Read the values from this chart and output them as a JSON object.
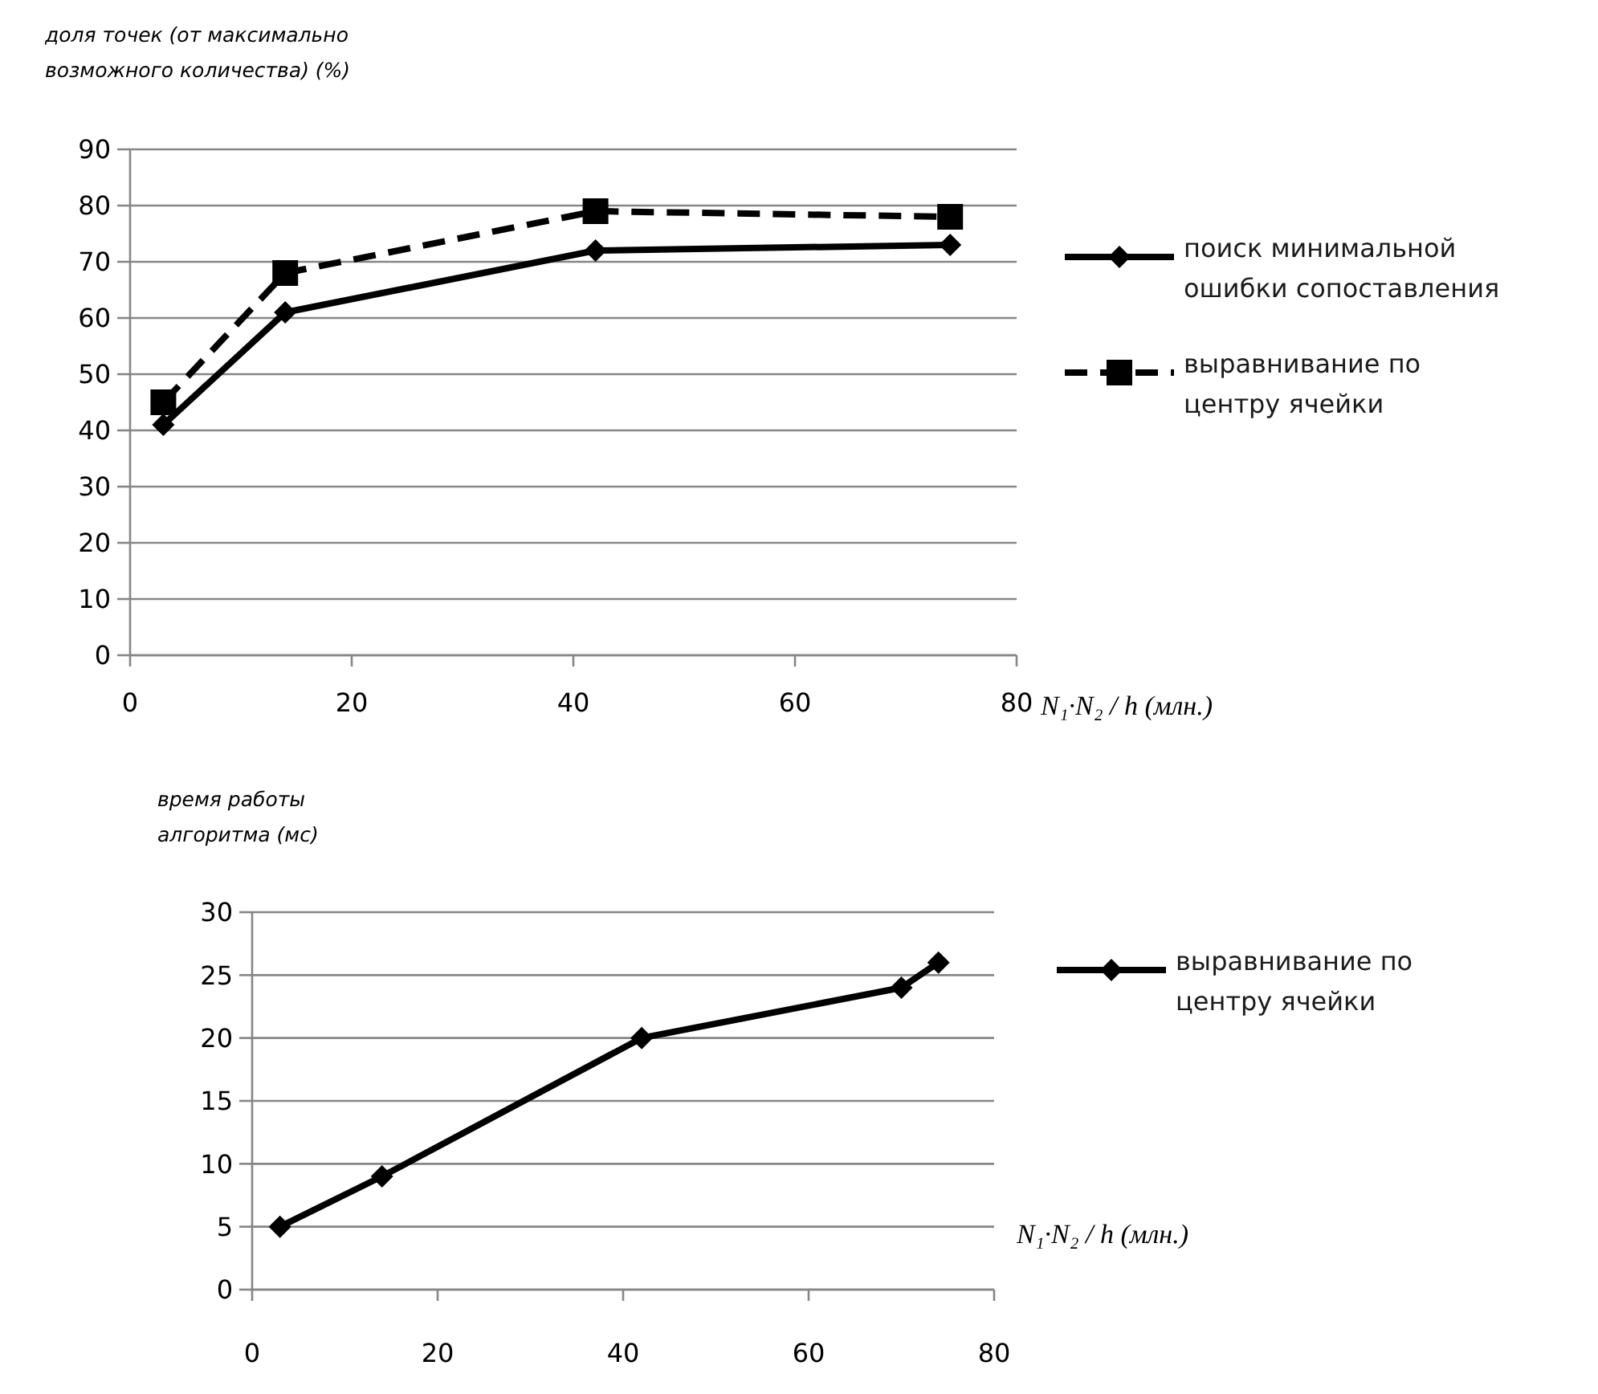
{
  "chart_data": [
    {
      "type": "line",
      "ylabel": "доля точек (от максимально возможного количества) (%)",
      "xlabel": "N₁·N₂ / h (млн.)",
      "xlim": [
        0,
        80
      ],
      "xticks": [
        0,
        20,
        40,
        60,
        80
      ],
      "ylim": [
        0,
        90
      ],
      "yticks": [
        0,
        10,
        20,
        30,
        40,
        50,
        60,
        70,
        80,
        90
      ],
      "grid": "y",
      "legend": "right",
      "series": [
        {
          "name": "поиск минимальной ошибки сопоставления",
          "color": "#000000",
          "marker": "diamond",
          "line_style": "solid",
          "x": [
            3,
            14,
            42,
            74
          ],
          "values": [
            41,
            61,
            72,
            73
          ]
        },
        {
          "name": "выравнивание по центру ячейки",
          "color": "#000000",
          "marker": "square",
          "line_style": "dashed",
          "x": [
            3,
            14,
            42,
            74
          ],
          "values": [
            45,
            68,
            79,
            78
          ]
        }
      ]
    },
    {
      "type": "line",
      "ylabel": "время работы алгоритма (мс)",
      "xlabel": "N₁·N₂ / h (млн.)",
      "xlim": [
        0,
        80
      ],
      "xticks": [
        0,
        20,
        40,
        60,
        80
      ],
      "ylim": [
        0,
        30
      ],
      "yticks": [
        0,
        5,
        10,
        15,
        20,
        25,
        30
      ],
      "grid": "y",
      "legend": "right",
      "series": [
        {
          "name": "выравнивание по центру ячейки",
          "color": "#000000",
          "marker": "diamond",
          "line_style": "solid",
          "x": [
            3,
            14,
            42,
            70,
            74
          ],
          "values": [
            5,
            9,
            20,
            24,
            26
          ]
        }
      ]
    }
  ]
}
